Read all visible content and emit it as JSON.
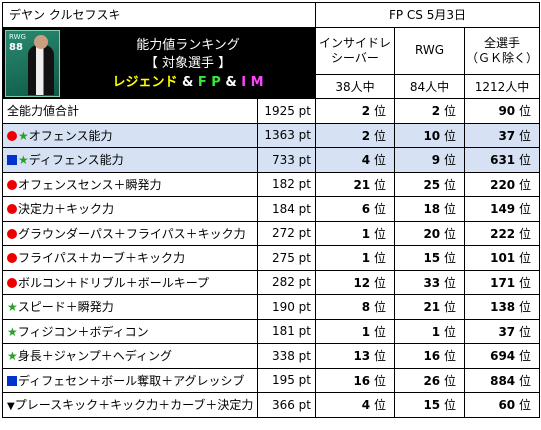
{
  "header": {
    "player_name": "デヤン クルセフスキ",
    "date_label": "FP CS 5月3日",
    "banner": {
      "card_position": "RWG",
      "card_rating": "88",
      "line1": "能力値ランキング",
      "line2": "【 対象選手 】",
      "line3_part1": "レジェンド",
      "line3_sep1": " & ",
      "line3_part2": "F P",
      "line3_sep2": " & ",
      "line3_part3": "I M"
    },
    "columns": [
      {
        "label": "インサイドレ\nシーバー",
        "count": "38人中"
      },
      {
        "label": "RWG",
        "count": "84人中"
      },
      {
        "label": "全選手\n（ＧＫ除く）",
        "count": "1212人中"
      }
    ]
  },
  "rank_suffix": "位",
  "rows": [
    {
      "icon": "",
      "label": "全能力値合計",
      "points": "1925 pt",
      "bg": "white",
      "ranks": [
        {
          "n": "2",
          "color": "red"
        },
        {
          "n": "2",
          "color": "red"
        },
        {
          "n": "90",
          "color": "red"
        }
      ]
    },
    {
      "icon": "circle-star",
      "label": "オフェンス能力",
      "points": "1363 pt",
      "bg": "blue",
      "ranks": [
        {
          "n": "2",
          "color": "red"
        },
        {
          "n": "10",
          "color": "orange"
        },
        {
          "n": "37",
          "color": "red"
        }
      ]
    },
    {
      "icon": "square-star",
      "label": "ディフェンス能力",
      "points": "733 pt",
      "bg": "blue",
      "ranks": [
        {
          "n": "4",
          "color": "orange"
        },
        {
          "n": "9",
          "color": "red"
        },
        {
          "n": "631",
          "color": "black"
        }
      ]
    },
    {
      "icon": "circle",
      "label": "オフェンスセンス＋瞬発力",
      "points": "182 pt",
      "bg": "white",
      "ranks": [
        {
          "n": "21",
          "color": "black"
        },
        {
          "n": "25",
          "color": "black"
        },
        {
          "n": "220",
          "color": "orange"
        }
      ]
    },
    {
      "icon": "circle",
      "label": "決定力＋キック力",
      "points": "184 pt",
      "bg": "white",
      "ranks": [
        {
          "n": "6",
          "color": "orange"
        },
        {
          "n": "18",
          "color": "black"
        },
        {
          "n": "149",
          "color": "orange"
        }
      ]
    },
    {
      "icon": "circle",
      "label": "グラウンダーパス＋フライパス＋キック力",
      "points": "272 pt",
      "bg": "white",
      "ranks": [
        {
          "n": "1",
          "color": "magenta"
        },
        {
          "n": "20",
          "color": "black"
        },
        {
          "n": "222",
          "color": "orange"
        }
      ]
    },
    {
      "icon": "circle",
      "label": "フライパス＋カーブ＋キック力",
      "points": "275 pt",
      "bg": "white",
      "ranks": [
        {
          "n": "1",
          "color": "magenta"
        },
        {
          "n": "15",
          "color": "orange"
        },
        {
          "n": "101",
          "color": "red"
        }
      ]
    },
    {
      "icon": "circle",
      "label": "ボルコン＋ドリブル＋ボールキープ",
      "points": "282 pt",
      "bg": "white",
      "ranks": [
        {
          "n": "12",
          "color": "black"
        },
        {
          "n": "33",
          "color": "black"
        },
        {
          "n": "171",
          "color": "orange"
        }
      ]
    },
    {
      "icon": "star",
      "label": "スピード＋瞬発力",
      "points": "190 pt",
      "bg": "white",
      "ranks": [
        {
          "n": "8",
          "color": "black"
        },
        {
          "n": "21",
          "color": "black"
        },
        {
          "n": "138",
          "color": "orange"
        }
      ]
    },
    {
      "icon": "star",
      "label": "フィジコン＋ボディコン",
      "points": "181 pt",
      "bg": "white",
      "ranks": [
        {
          "n": "1",
          "color": "magenta"
        },
        {
          "n": "1",
          "color": "magenta"
        },
        {
          "n": "37",
          "color": "red"
        }
      ]
    },
    {
      "icon": "star",
      "label": "身長＋ジャンプ＋ヘディング",
      "points": "338 pt",
      "bg": "white",
      "ranks": [
        {
          "n": "13",
          "color": "black"
        },
        {
          "n": "16",
          "color": "orange"
        },
        {
          "n": "694",
          "color": "black"
        }
      ]
    },
    {
      "icon": "square",
      "label": "ディフェセン＋ボール奪取＋アグレッシブ",
      "points": "195 pt",
      "bg": "white",
      "ranks": [
        {
          "n": "16",
          "color": "black"
        },
        {
          "n": "26",
          "color": "black"
        },
        {
          "n": "884",
          "color": "bluec"
        }
      ]
    },
    {
      "icon": "triangle",
      "label": "プレースキック＋キック力＋カーブ＋決定力",
      "points": "366 pt",
      "bg": "white",
      "ranks": [
        {
          "n": "4",
          "color": "orange"
        },
        {
          "n": "15",
          "color": "orange"
        },
        {
          "n": "60",
          "color": "red"
        }
      ]
    }
  ]
}
